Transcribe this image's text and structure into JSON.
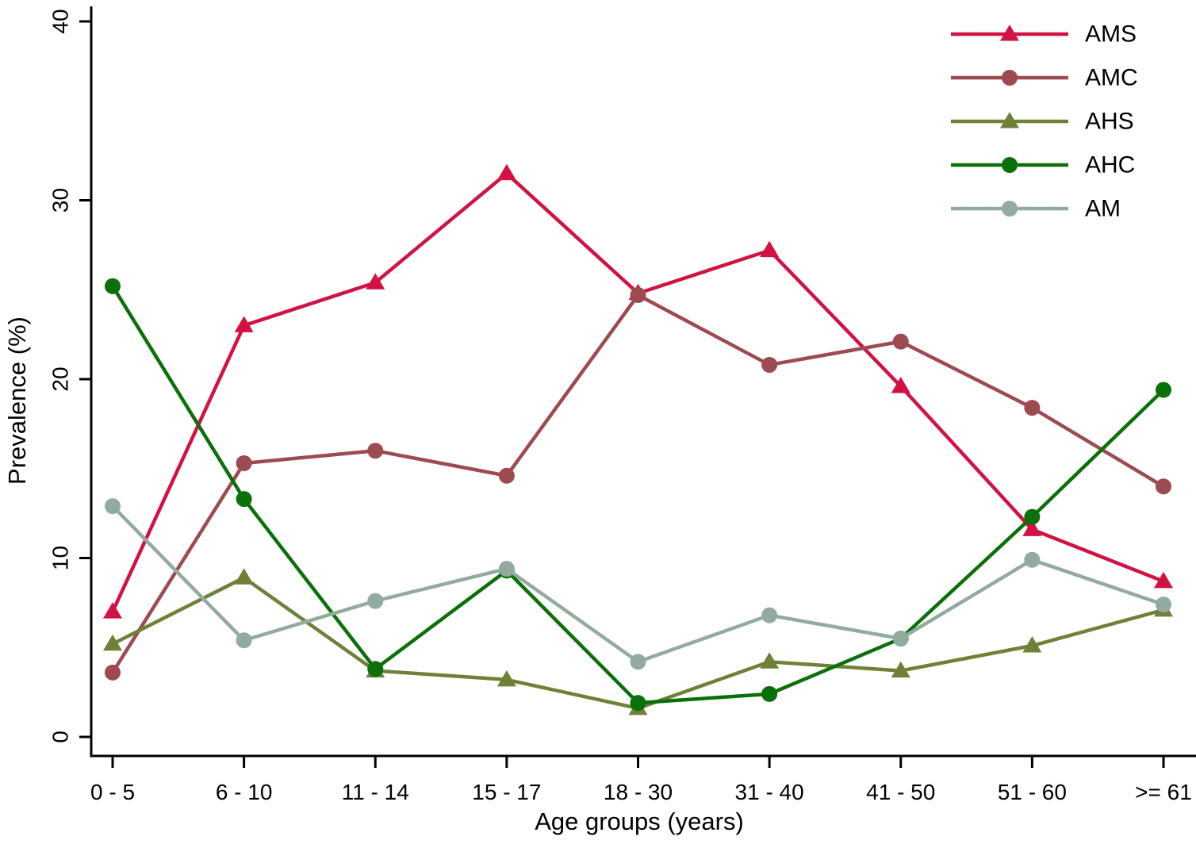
{
  "chart_data": {
    "type": "line",
    "title": "",
    "xlabel": "Age groups (years)",
    "ylabel": "Prevalence (%)",
    "categories": [
      "0 - 5",
      "6 - 10",
      "11 - 14",
      "15 - 17",
      "18 - 30",
      "31 - 40",
      "41 - 50",
      "51 - 60",
      ">= 61"
    ],
    "ylim": [
      0,
      40
    ],
    "yticks": [
      0,
      10,
      20,
      30,
      40
    ],
    "grid": false,
    "legend_position": "top-right",
    "axis_color": "#000000",
    "series": [
      {
        "name": "AMS",
        "marker": "triangle",
        "color": "#d11243",
        "values": [
          7.0,
          23.0,
          25.4,
          31.5,
          24.8,
          27.2,
          19.6,
          11.6,
          8.7
        ]
      },
      {
        "name": "AMC",
        "marker": "circle",
        "color": "#9d4a50",
        "values": [
          3.6,
          15.3,
          16.0,
          14.6,
          24.7,
          20.8,
          22.1,
          18.4,
          14.0
        ]
      },
      {
        "name": "AHS",
        "marker": "triangle",
        "color": "#6e8136",
        "values": [
          5.2,
          8.9,
          3.7,
          3.2,
          1.6,
          4.2,
          3.7,
          5.1,
          7.1
        ]
      },
      {
        "name": "AHC",
        "marker": "circle",
        "color": "#0a700a",
        "values": [
          25.2,
          13.3,
          3.8,
          9.3,
          1.9,
          2.4,
          5.5,
          12.3,
          19.4
        ]
      },
      {
        "name": "AM",
        "marker": "circle",
        "color": "#92ab9f",
        "values": [
          12.9,
          5.4,
          7.6,
          9.4,
          4.2,
          6.8,
          5.5,
          9.9,
          7.4
        ]
      }
    ]
  }
}
